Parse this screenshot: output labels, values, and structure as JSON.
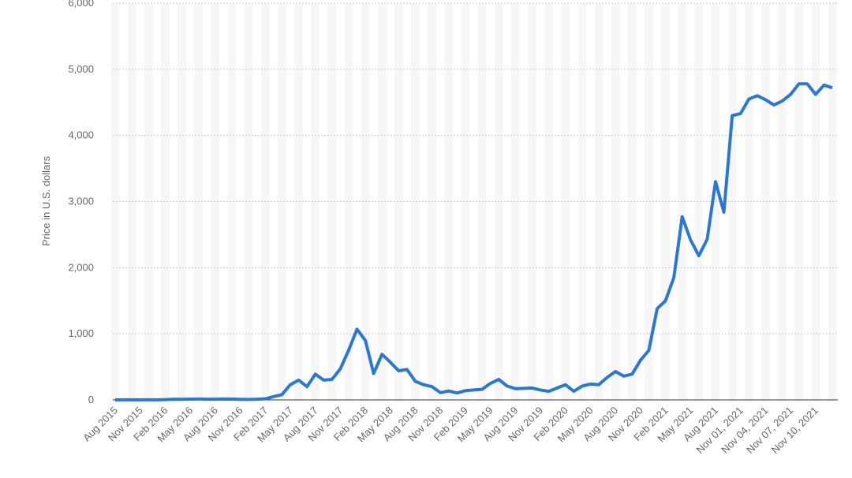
{
  "chart_data": {
    "type": "line",
    "y_label": "Price in U.S. dollars",
    "categories": [
      "Aug 2015",
      null,
      null,
      "Nov 2015",
      null,
      null,
      "Feb 2016",
      null,
      null,
      "May 2016",
      null,
      null,
      "Aug 2016",
      null,
      null,
      "Nov 2016",
      null,
      null,
      "Feb 2017",
      null,
      null,
      "May 2017",
      null,
      null,
      "Aug 2017",
      null,
      null,
      "Nov 2017",
      null,
      null,
      "Feb 2018",
      null,
      null,
      "May 2018",
      null,
      null,
      "Aug 2018",
      null,
      null,
      "Nov 2018",
      null,
      null,
      "Feb 2019",
      null,
      null,
      "May 2019",
      null,
      null,
      "Aug 2019",
      null,
      null,
      "Nov 2019",
      null,
      null,
      "Feb 2020",
      null,
      null,
      "May 2020",
      null,
      null,
      "Aug 2020",
      null,
      null,
      "Nov 2020",
      null,
      null,
      "Feb 2021",
      null,
      null,
      "May 2021",
      null,
      null,
      "Aug 2021",
      null,
      null,
      "Nov 01, 2021",
      null,
      null,
      "Nov 04, 2021",
      null,
      null,
      "Nov 07, 2021",
      null,
      null,
      "Nov 10, 2021",
      null,
      null
    ],
    "series": [
      {
        "color": "#2a78d6",
        "values": [
          1,
          1,
          1,
          1,
          1,
          1,
          5,
          11,
          9,
          12,
          14,
          11,
          11,
          13,
          12,
          9,
          8,
          10,
          16,
          50,
          80,
          230,
          300,
          200,
          390,
          300,
          310,
          470,
          750,
          1070,
          900,
          400,
          690,
          570,
          440,
          460,
          280,
          230,
          200,
          110,
          135,
          105,
          140,
          150,
          160,
          250,
          310,
          210,
          170,
          175,
          180,
          150,
          130,
          180,
          230,
          130,
          210,
          240,
          230,
          340,
          430,
          360,
          390,
          600,
          750,
          1380,
          1500,
          1850,
          2770,
          2420,
          2180,
          2430,
          3300,
          2840,
          4300,
          4330,
          4550,
          4600,
          4540,
          4460,
          4520,
          4620,
          4780,
          4780,
          4620,
          4760,
          4720
        ]
      }
    ],
    "ylim": [
      0,
      6000
    ],
    "yticks": [
      0,
      {
        "value": 1000,
        "label": "1,000"
      },
      {
        "value": 2000,
        "label": "2,000"
      },
      {
        "value": 3000,
        "label": "3,000"
      },
      {
        "value": 4000,
        "label": "4,000"
      },
      {
        "value": 5000,
        "label": "5,000"
      },
      {
        "value": 6000,
        "label": "6,000"
      }
    ],
    "grid": true
  }
}
